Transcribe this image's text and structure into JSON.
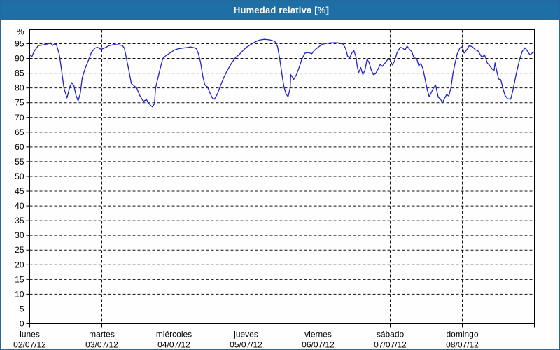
{
  "window": {
    "title": "Humedad relativa [%]"
  },
  "colors": {
    "titlebar_bg": "#1d6fa5",
    "frame_border": "#25689c",
    "line": "#2121c8",
    "grid": "#111111",
    "axis": "#000000",
    "plot_bg": "#fdfefd",
    "title_text": "#ffffff",
    "label_text": "#000000"
  },
  "chart_data": {
    "type": "line",
    "title": "Humedad relativa [%]",
    "y_unit_label": "%",
    "ylim": [
      0,
      100
    ],
    "y_ticks": [
      0,
      5,
      10,
      15,
      20,
      25,
      30,
      35,
      40,
      45,
      50,
      55,
      60,
      65,
      70,
      75,
      80,
      85,
      90,
      95
    ],
    "x_hours_range": [
      0,
      168
    ],
    "grid": "dashed",
    "legend": "none",
    "x_days": [
      {
        "name": "lunes",
        "date": "02/07/12"
      },
      {
        "name": "martes",
        "date": "03/07/12"
      },
      {
        "name": "miércoles",
        "date": "04/07/12"
      },
      {
        "name": "jueves",
        "date": "05/07/12"
      },
      {
        "name": "viernes",
        "date": "06/07/12"
      },
      {
        "name": "sábado",
        "date": "07/07/12"
      },
      {
        "name": "domingo",
        "date": "08/07/12"
      }
    ],
    "series": [
      {
        "name": "Humedad relativa",
        "points": [
          [
            0,
            91.3
          ],
          [
            0.7,
            90.5
          ],
          [
            1.4,
            92.3
          ],
          [
            2.8,
            94.3
          ],
          [
            4.5,
            94.6
          ],
          [
            6,
            94.9
          ],
          [
            7,
            95.3
          ],
          [
            7.6,
            94.4
          ],
          [
            8.3,
            95.0
          ],
          [
            8.9,
            94.7
          ],
          [
            9.8,
            91.5
          ],
          [
            10.5,
            86.7
          ],
          [
            11.4,
            80.0
          ],
          [
            12.4,
            76.6
          ],
          [
            13.3,
            80.3
          ],
          [
            14,
            81.8
          ],
          [
            14.7,
            80.8
          ],
          [
            15.4,
            77.5
          ],
          [
            16.1,
            75.6
          ],
          [
            16.8,
            78.0
          ],
          [
            17.5,
            83.5
          ],
          [
            18.4,
            86.5
          ],
          [
            19.6,
            89.5
          ],
          [
            20.5,
            92.0
          ],
          [
            21.7,
            93.5
          ],
          [
            22.6,
            93.8
          ],
          [
            23.3,
            93.3
          ],
          [
            24,
            93.2
          ],
          [
            25.2,
            93.7
          ],
          [
            26.3,
            94.3
          ],
          [
            28,
            94.7
          ],
          [
            29.5,
            94.6
          ],
          [
            30.8,
            94.4
          ],
          [
            31.5,
            93.5
          ],
          [
            32.2,
            90.0
          ],
          [
            32.9,
            86.5
          ],
          [
            33.8,
            81.5
          ],
          [
            34.7,
            80.7
          ],
          [
            35.6,
            80.0
          ],
          [
            36.6,
            77.5
          ],
          [
            37.8,
            75.5
          ],
          [
            38.9,
            76.0
          ],
          [
            40,
            74.3
          ],
          [
            40.8,
            73.6
          ],
          [
            41.5,
            74.6
          ],
          [
            41.9,
            80.0
          ],
          [
            42.6,
            83.0
          ],
          [
            43.4,
            86.5
          ],
          [
            44.3,
            90.0
          ],
          [
            45.4,
            91.0
          ],
          [
            46.6,
            91.8
          ],
          [
            47.5,
            92.4
          ],
          [
            48,
            92.8
          ],
          [
            49.4,
            93.3
          ],
          [
            50.8,
            93.5
          ],
          [
            52.4,
            93.7
          ],
          [
            53.6,
            93.9
          ],
          [
            54.8,
            93.6
          ],
          [
            55.5,
            93.3
          ],
          [
            56.2,
            91.5
          ],
          [
            56.9,
            88.5
          ],
          [
            57.6,
            84.0
          ],
          [
            58.3,
            81.0
          ],
          [
            59.2,
            80.3
          ],
          [
            59.9,
            78.5
          ],
          [
            60.8,
            76.6
          ],
          [
            61.5,
            76.2
          ],
          [
            62.5,
            78.0
          ],
          [
            63.4,
            80.5
          ],
          [
            64.6,
            83.5
          ],
          [
            65.7,
            85.8
          ],
          [
            67.1,
            88.3
          ],
          [
            68.5,
            90.3
          ],
          [
            69.9,
            91.5
          ],
          [
            71.3,
            93.0
          ],
          [
            72,
            93.7
          ],
          [
            73.4,
            94.6
          ],
          [
            75,
            95.6
          ],
          [
            76.4,
            96.2
          ],
          [
            78.1,
            96.5
          ],
          [
            79.9,
            96.3
          ],
          [
            81.6,
            95.8
          ],
          [
            82.5,
            94.0
          ],
          [
            83.2,
            90.0
          ],
          [
            83.9,
            85.0
          ],
          [
            84.6,
            80.5
          ],
          [
            85.3,
            78.0
          ],
          [
            86,
            77.0
          ],
          [
            86.7,
            80.0
          ],
          [
            86.9,
            84.5
          ],
          [
            87.9,
            82.9
          ],
          [
            88.8,
            84.5
          ],
          [
            89.7,
            87.0
          ],
          [
            90.6,
            89.8
          ],
          [
            91.6,
            91.8
          ],
          [
            92.7,
            92.0
          ],
          [
            93.9,
            91.6
          ],
          [
            94.8,
            92.8
          ],
          [
            96,
            93.8
          ],
          [
            97.4,
            94.8
          ],
          [
            99,
            95.2
          ],
          [
            100.7,
            95.3
          ],
          [
            102.5,
            95.3
          ],
          [
            104.2,
            95.0
          ],
          [
            105.1,
            93.5
          ],
          [
            105.8,
            90.8
          ],
          [
            106.5,
            90.2
          ],
          [
            107.2,
            91.8
          ],
          [
            107.9,
            92.7
          ],
          [
            108.6,
            90.5
          ],
          [
            109,
            87.5
          ],
          [
            109.5,
            85.2
          ],
          [
            110.2,
            86.9
          ],
          [
            110.9,
            84.5
          ],
          [
            111.6,
            86.0
          ],
          [
            112.3,
            89.8
          ],
          [
            113,
            88.5
          ],
          [
            113.7,
            86.0
          ],
          [
            114.4,
            84.5
          ],
          [
            115.1,
            84.8
          ],
          [
            116,
            86.5
          ],
          [
            116.7,
            88.0
          ],
          [
            117.4,
            87.3
          ],
          [
            118.3,
            88.5
          ],
          [
            119.3,
            89.8
          ],
          [
            120,
            89.5
          ],
          [
            120.7,
            87.8
          ],
          [
            121.4,
            89.0
          ],
          [
            122.3,
            92.0
          ],
          [
            123.3,
            93.8
          ],
          [
            124.2,
            93.5
          ],
          [
            124.9,
            92.8
          ],
          [
            125.6,
            94.2
          ],
          [
            126.5,
            93.0
          ],
          [
            127.2,
            92.3
          ],
          [
            127.9,
            90.2
          ],
          [
            128.8,
            90.0
          ],
          [
            129.5,
            87.5
          ],
          [
            130.2,
            88.3
          ],
          [
            130.9,
            86.5
          ],
          [
            131.6,
            83.0
          ],
          [
            132.3,
            79.5
          ],
          [
            133,
            77.0
          ],
          [
            133.7,
            78.5
          ],
          [
            134.4,
            80.0
          ],
          [
            135.1,
            81.0
          ],
          [
            136,
            76.8
          ],
          [
            136.7,
            76.3
          ],
          [
            137.4,
            75.0
          ],
          [
            138.1,
            76.5
          ],
          [
            138.8,
            77.8
          ],
          [
            139.5,
            77.2
          ],
          [
            140.2,
            80.0
          ],
          [
            140.9,
            85.0
          ],
          [
            141.6,
            88.5
          ],
          [
            142.3,
            91.5
          ],
          [
            143.2,
            93.6
          ],
          [
            144,
            94.0
          ],
          [
            144.6,
            91.8
          ],
          [
            145.3,
            92.7
          ],
          [
            146.3,
            94.3
          ],
          [
            147.3,
            94.0
          ],
          [
            148.4,
            92.9
          ],
          [
            149.3,
            92.5
          ],
          [
            150.5,
            90.4
          ],
          [
            151.4,
            91.2
          ],
          [
            152.3,
            88.5
          ],
          [
            153,
            87.7
          ],
          [
            154,
            86.3
          ],
          [
            154.6,
            86.0
          ],
          [
            154.9,
            88.5
          ],
          [
            155.5,
            85.5
          ],
          [
            156.1,
            83.0
          ],
          [
            156.8,
            82.8
          ],
          [
            157.5,
            80.0
          ],
          [
            158.2,
            77.5
          ],
          [
            159.1,
            76.3
          ],
          [
            160.1,
            76.2
          ],
          [
            160.8,
            79.0
          ],
          [
            161.9,
            84.5
          ],
          [
            163.1,
            89.8
          ],
          [
            164,
            92.5
          ],
          [
            164.9,
            93.6
          ],
          [
            165.8,
            92.3
          ],
          [
            166.5,
            91.2
          ],
          [
            167.2,
            91.8
          ],
          [
            168,
            92.3
          ]
        ]
      }
    ]
  }
}
